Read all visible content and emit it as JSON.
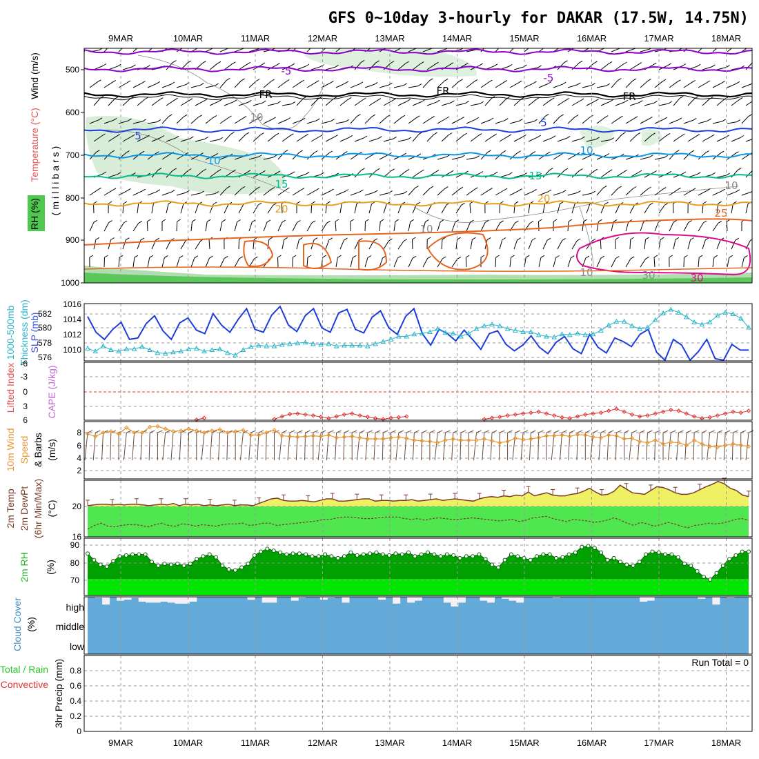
{
  "title": "GFS 0~10day 3-hourly for DAKAR (17.5W, 14.75N)",
  "colors": {
    "wind_barb": "#000000",
    "fr_line": "#000000",
    "minus5": "#8b00c8",
    "t5": "#1c3fdc",
    "t10": "#0a96e6",
    "t15": "#00be8c",
    "t20": "#e6a01e",
    "t25": "#e6641e",
    "t30": "#dc0a8c",
    "rh": "#c8e6c8",
    "slp": "#1e3cdc",
    "thickness": "#28b4c8",
    "lifted": "#dc3232",
    "cape": "#c864dc",
    "wind10": "#e69632",
    "temp_fill": "#f0f064",
    "dewpt_fill": "#50e650",
    "temp_line": "#783c28",
    "rh_dark": "#00a000",
    "rh_light": "#00e600",
    "cloud": "#64aad8",
    "cloud_clear": "#f4f0f8"
  },
  "dates": [
    "9MAR",
    "10MAR",
    "11MAR",
    "12MAR",
    "13MAR",
    "14MAR",
    "15MAR",
    "16MAR",
    "17MAR",
    "18MAR"
  ],
  "chart_data": [
    {
      "type": "contour",
      "panel": "upper-air",
      "ylabel_parts": [
        "Wind (m/s)",
        "Temperature (°C)",
        "RH (%)",
        "(millibars)"
      ],
      "yticks": [
        "500",
        "600",
        "700",
        "800",
        "900",
        "1000"
      ],
      "ylim": [
        1000,
        450
      ],
      "contour_labels": [
        "-5",
        "-5",
        "FR",
        "FR",
        "FR",
        "5",
        "5",
        "10",
        "10",
        "15",
        "15",
        "20",
        "20",
        "25",
        "30",
        "10",
        "10",
        "10",
        "30",
        "10"
      ]
    },
    {
      "type": "line",
      "panel": "slp-thickness",
      "ylabel_parts": [
        "1000-500mb",
        "Thickness (dm)",
        "SLP (mb)"
      ],
      "yticks_left": [
        "582",
        "580",
        "578",
        "576"
      ],
      "yticks_right": [
        "1016",
        "1014",
        "1012",
        "1010"
      ],
      "series": [
        {
          "name": "SLP (mb)",
          "values": [
            1014.2,
            1012.0,
            1011.0,
            1012.4,
            1013.4,
            1011.0,
            1011.2,
            1013.2,
            1014.3,
            1012.2,
            1011.0,
            1013.3,
            1014.0,
            1012.3,
            1011.8,
            1014.6,
            1013.0,
            1012.0,
            1013.8,
            1015.3,
            1012.4,
            1012.0,
            1014.4,
            1015.6,
            1013.0,
            1012.1,
            1014.3,
            1015.3,
            1012.6,
            1012.0,
            1014.7,
            1015.2,
            1012.4,
            1011.9,
            1014.1,
            1015.0,
            1012.6,
            1011.7,
            1014.2,
            1015.3,
            1011.8,
            1010.2,
            1012.4,
            1011.8,
            1010.8,
            1012.3,
            1011.0,
            1009.6,
            1011.8,
            1012.2,
            1010.3,
            1009.4,
            1010.2,
            1011.5,
            1009.9,
            1009.0,
            1010.6,
            1011.4,
            1009.7,
            1009.0,
            1011.7,
            1009.9,
            1009.1,
            1011.2,
            1010.7,
            1010.0,
            1011.7,
            1012.4,
            1009.2,
            1008.1,
            1011.0,
            1010.2,
            1008.1,
            1009.3,
            1011.0,
            1008.3,
            1008.1,
            1010.3,
            1009.5,
            1009.5
          ]
        },
        {
          "name": "1000-500mb Thickness (dm)",
          "values": [
            577.4,
            577.0,
            577.7,
            577.2,
            577.0,
            577.3,
            577.3,
            577.6,
            577.2,
            576.8,
            576.7,
            576.9,
            577.0,
            577.3,
            577.4,
            577.0,
            577.2,
            577.3,
            576.8,
            576.5,
            577.2,
            577.6,
            577.8,
            577.7,
            577.7,
            577.9,
            578.0,
            578.1,
            578.2,
            578.0,
            577.9,
            578.0,
            577.7,
            577.8,
            577.8,
            577.8,
            577.7,
            578.0,
            578.3,
            578.6,
            579.0,
            579.0,
            579.3,
            579.4,
            579.6,
            580.0,
            579.5,
            579.4,
            579.0,
            579.4,
            580.0,
            580.4,
            580.6,
            580.4,
            580.0,
            579.8,
            579.6,
            579.6,
            579.2,
            579.0,
            578.9,
            579.3,
            579.2,
            579.4,
            579.2,
            579.3,
            579.8,
            580.5,
            581.0,
            581.0,
            580.4,
            580.0,
            580.2,
            581.2,
            582.1,
            582.6,
            582.2,
            581.6,
            580.9,
            580.6,
            580.9,
            581.8,
            582.2,
            582.0,
            581.4,
            580.2
          ]
        }
      ]
    },
    {
      "type": "line",
      "panel": "stability",
      "ylabel_parts": [
        "Lifted Index",
        "CAPE (J/kg)"
      ],
      "yticks": [
        "-6",
        "-3",
        "0",
        "3",
        "6"
      ],
      "ylim": [
        6,
        -6
      ],
      "series": [
        {
          "name": "Lifted Index",
          "values": [
            null,
            null,
            null,
            null,
            null,
            null,
            null,
            null,
            null,
            null,
            null,
            null,
            null,
            null,
            5.9,
            5.5,
            null,
            null,
            null,
            null,
            null,
            null,
            null,
            null,
            5.8,
            5.2,
            4.7,
            4.6,
            4.8,
            5.0,
            5.3,
            5.6,
            5.2,
            4.8,
            4.6,
            5.0,
            5.3,
            5.6,
            5.8,
            5.5,
            5.4,
            5.2,
            null,
            null,
            null,
            null,
            null,
            null,
            null,
            null,
            null,
            5.8,
            5.5,
            5.3,
            5.0,
            4.8,
            4.6,
            4.4,
            4.2,
            4.6,
            5.0,
            5.4,
            5.6,
            5.2,
            4.8,
            4.6,
            4.4,
            4.0,
            3.6,
            4.2,
            4.8,
            5.2,
            5.0,
            4.6,
            4.2,
            3.8,
            4.0,
            4.6,
            5.2,
            5.6,
            5.4,
            5.0,
            4.6,
            4.2,
            4.4,
            4.0
          ]
        }
      ]
    },
    {
      "type": "line",
      "panel": "wind10m",
      "ylabel_parts": [
        "10m Wind",
        "Speed",
        "& Barbs",
        "(m/s)"
      ],
      "yticks": [
        "8",
        "6",
        "4",
        "2"
      ],
      "ylim": [
        0,
        10
      ],
      "series": [
        {
          "name": "10m Wind Speed",
          "values": [
            7.8,
            7.4,
            8.0,
            8.2,
            7.8,
            8.8,
            8.0,
            8.0,
            8.9,
            9.0,
            8.6,
            8.2,
            8.3,
            8.6,
            8.3,
            8.0,
            8.3,
            8.5,
            8.0,
            8.2,
            8.4,
            7.6,
            7.6,
            8.0,
            8.4,
            7.5,
            7.4,
            7.3,
            7.4,
            7.5,
            7.4,
            7.6,
            7.2,
            7.3,
            7.4,
            7.2,
            7.0,
            7.0,
            7.0,
            7.2,
            7.3,
            7.1,
            6.8,
            6.7,
            6.6,
            6.4,
            6.8,
            7.0,
            6.8,
            6.8,
            6.8,
            7.0,
            6.7,
            6.4,
            6.6,
            7.1,
            6.9,
            7.0,
            7.2,
            7.5,
            7.5,
            7.6,
            7.4,
            7.7,
            7.6,
            7.3,
            7.2,
            7.6,
            7.5,
            7.0,
            7.1,
            6.6,
            6.4,
            6.8,
            6.2,
            6.5,
            6.4,
            6.0,
            6.8,
            6.2,
            5.8,
            5.7,
            6.0,
            6.2,
            6.0,
            5.8
          ]
        }
      ]
    },
    {
      "type": "area",
      "panel": "temperature",
      "ylabel_parts": [
        "2m Temp",
        "2m DewPt",
        "(6hr Min/Max)",
        "(°C)"
      ],
      "yticks": [
        "20",
        "16"
      ],
      "ylim": [
        16,
        26
      ],
      "series": [
        {
          "name": "2m Temp",
          "values": [
            20.1,
            20.2,
            20.3,
            20.3,
            20.2,
            20.3,
            20.2,
            20.3,
            20.3,
            20.2,
            20.1,
            20.2,
            20.3,
            20.2,
            20.4,
            20.1,
            20.3,
            20.2,
            20.3,
            20.1,
            20.2,
            20.1,
            20.2,
            20.3,
            20.1,
            20.2,
            20.2,
            20.1,
            20.4,
            20.7,
            21.0,
            21.1,
            20.8,
            20.7,
            20.7,
            20.8,
            20.7,
            20.6,
            20.8,
            21.0,
            21.0,
            20.7,
            20.7,
            20.8,
            20.9,
            21.0,
            21.0,
            20.7,
            20.8,
            20.8,
            20.7,
            20.8,
            20.8,
            20.9,
            20.7,
            20.8,
            20.9,
            21.0,
            20.8,
            20.9,
            21.0,
            20.9,
            20.8,
            20.7,
            21.0,
            21.2,
            21.3,
            21.2,
            21.4,
            21.3,
            21.5,
            21.4,
            21.9,
            21.4,
            21.6,
            21.8,
            21.5,
            21.4,
            21.4,
            21.6,
            21.7,
            22.0,
            22.4,
            21.9,
            21.5,
            21.6,
            22.0,
            22.8,
            22.3,
            21.8,
            21.7,
            21.6,
            22.1,
            22.6,
            22.5,
            22.2,
            21.8,
            21.6,
            21.6,
            21.8,
            22.2,
            22.6,
            22.9,
            23.3,
            23.0,
            22.4,
            22.1,
            21.5,
            21.3
          ]
        },
        {
          "name": "2m DewPt",
          "values": [
            17.0,
            17.5,
            17.8,
            17.4,
            17.3,
            17.5,
            17.6,
            17.6,
            17.5,
            17.3,
            17.6,
            17.8,
            17.5,
            17.4,
            17.7,
            17.6,
            17.4,
            17.6,
            17.5,
            17.4,
            17.6,
            17.7,
            17.7,
            17.8,
            17.5,
            17.6,
            17.8,
            17.8,
            17.5,
            17.6,
            17.7,
            17.8,
            17.9,
            18.0,
            18.1,
            18.3,
            18.3,
            18.5,
            18.6,
            18.6,
            18.5,
            18.4,
            18.4,
            18.5,
            18.6,
            18.6,
            18.6,
            18.4,
            18.3,
            18.4,
            18.2,
            18.4,
            18.5,
            18.4,
            18.3,
            18.3,
            18.4,
            18.5,
            18.4,
            18.3,
            18.2,
            18.1,
            18.2,
            18.3,
            18.0,
            18.2,
            18.5,
            18.6,
            18.7,
            18.4,
            18.2,
            18.0,
            18.3,
            18.2,
            18.1,
            17.9,
            18.0,
            18.2,
            18.5,
            18.2,
            17.8,
            17.5,
            17.9,
            17.7,
            17.4,
            17.6,
            17.9,
            17.7,
            17.4,
            17.2,
            17.5,
            17.6,
            17.8,
            17.7,
            17.8,
            18.0,
            18.3,
            18.4,
            18.2
          ]
        }
      ]
    },
    {
      "type": "area",
      "panel": "rh2m",
      "ylabel_parts": [
        "2m RH",
        "(%)"
      ],
      "yticks": [
        "90",
        "80",
        "70"
      ],
      "ylim": [
        63,
        92
      ],
      "series": [
        {
          "name": "2m RH",
          "values": [
            85.5,
            82.0,
            79.5,
            78.5,
            81.5,
            84.0,
            84.5,
            85.0,
            85.0,
            85.0,
            81.0,
            79.0,
            80.0,
            79.5,
            80.0,
            79.0,
            80.0,
            82.5,
            84.0,
            85.0,
            83.5,
            79.0,
            77.0,
            76.5,
            78.0,
            80.0,
            84.5,
            86.5,
            88.0,
            87.0,
            86.0,
            85.0,
            85.5,
            85.5,
            85.0,
            84.0,
            84.0,
            85.0,
            84.0,
            83.0,
            84.0,
            86.0,
            84.5,
            85.0,
            85.5,
            86.0,
            85.0,
            84.5,
            85.5,
            85.0,
            86.0,
            84.0,
            85.0,
            86.0,
            85.0,
            84.0,
            85.0,
            84.5,
            83.0,
            84.0,
            84.0,
            85.0,
            82.5,
            79.5,
            78.0,
            82.0,
            85.0,
            84.0,
            83.0,
            82.0,
            84.0,
            85.0,
            85.0,
            83.0,
            83.5,
            85.0,
            86.0,
            89.0,
            89.5,
            88.5,
            86.0,
            82.0,
            83.0,
            81.0,
            79.5,
            79.0,
            81.0,
            85.0,
            86.5,
            86.0,
            85.0,
            85.0,
            83.5,
            80.0,
            79.0,
            76.0,
            73.0,
            71.5,
            75.0,
            79.0,
            82.5,
            84.5,
            86.5,
            86.5
          ]
        }
      ]
    },
    {
      "type": "bar",
      "panel": "cloud",
      "ylabel_parts": [
        "Cloud Cover",
        "(%)"
      ],
      "yticks": [
        "high",
        "middle",
        "low"
      ],
      "series": [
        {
          "name": "high cloud",
          "values": [
            100,
            95,
            60,
            100,
            80,
            85,
            95,
            75,
            70,
            70,
            75,
            70,
            65,
            65,
            75,
            100,
            100,
            100,
            100,
            100,
            100,
            100,
            85,
            100,
            70,
            70,
            100,
            100,
            80,
            95,
            100,
            100,
            85,
            95,
            100,
            70,
            100,
            100,
            100,
            100,
            85,
            100,
            65,
            100,
            70,
            80,
            100,
            100,
            100,
            70,
            50,
            70,
            100,
            100,
            80,
            70,
            100,
            90,
            80,
            70,
            100,
            100,
            100,
            100,
            95,
            100,
            100,
            100,
            100,
            100,
            100,
            100,
            100,
            100,
            100,
            100,
            75,
            80,
            100,
            100,
            100,
            100,
            100,
            100,
            90,
            100,
            60,
            100,
            95,
            100,
            100
          ]
        }
      ]
    },
    {
      "type": "bar",
      "panel": "precip",
      "ylabel_parts": [
        "Total / Rain",
        "Convective",
        "3hr Precip (mm)"
      ],
      "yticks": [
        "0.8",
        "0.6",
        "0.4",
        "0.2",
        "0"
      ],
      "ylim": [
        0,
        1
      ],
      "run_total": "Run Total = 0",
      "series": []
    }
  ]
}
